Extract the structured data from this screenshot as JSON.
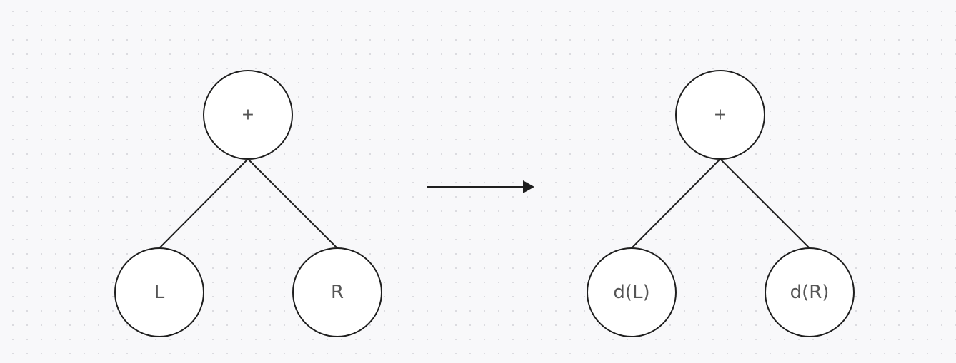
{
  "diagram": {
    "left_tree": {
      "root": {
        "label": "+"
      },
      "left_child": {
        "label": "L"
      },
      "right_child": {
        "label": "R"
      }
    },
    "right_tree": {
      "root": {
        "label": "+"
      },
      "left_child": {
        "label": "d(L)"
      },
      "right_child": {
        "label": "d(R)"
      }
    }
  }
}
